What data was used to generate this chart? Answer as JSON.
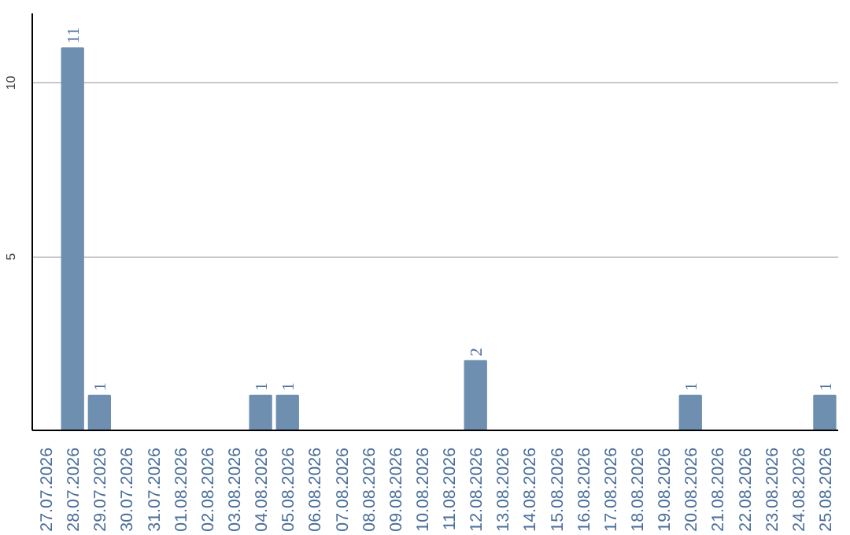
{
  "chart_data": {
    "type": "bar",
    "categories": [
      "27.07.2026",
      "28.07.2026",
      "29.07.2026",
      "30.07.2026",
      "31.07.2026",
      "01.08.2026",
      "02.08.2026",
      "03.08.2026",
      "04.08.2026",
      "05.08.2026",
      "06.08.2026",
      "07.08.2026",
      "08.08.2026",
      "09.08.2026",
      "10.08.2026",
      "11.08.2026",
      "12.08.2026",
      "13.08.2026",
      "14.08.2026",
      "15.08.2026",
      "16.08.2026",
      "17.08.2026",
      "18.08.2026",
      "19.08.2026",
      "20.08.2026",
      "21.08.2026",
      "22.08.2026",
      "23.08.2026",
      "24.08.2026",
      "25.08.2026"
    ],
    "values": [
      0,
      11,
      1,
      0,
      0,
      0,
      0,
      0,
      1,
      1,
      0,
      0,
      0,
      0,
      0,
      0,
      2,
      0,
      0,
      0,
      0,
      0,
      0,
      0,
      1,
      0,
      0,
      0,
      0,
      1
    ],
    "value_labels": [
      null,
      "11",
      "1",
      null,
      null,
      null,
      null,
      null,
      "1",
      "1",
      null,
      null,
      null,
      null,
      null,
      null,
      "2",
      null,
      null,
      null,
      null,
      null,
      null,
      null,
      "1",
      null,
      null,
      null,
      null,
      "1"
    ],
    "color": "#6e8fb0",
    "ylim": [
      0,
      12
    ],
    "yticks": [
      {
        "value": 0,
        "label": null
      },
      5,
      10
    ],
    "grid": "y"
  }
}
